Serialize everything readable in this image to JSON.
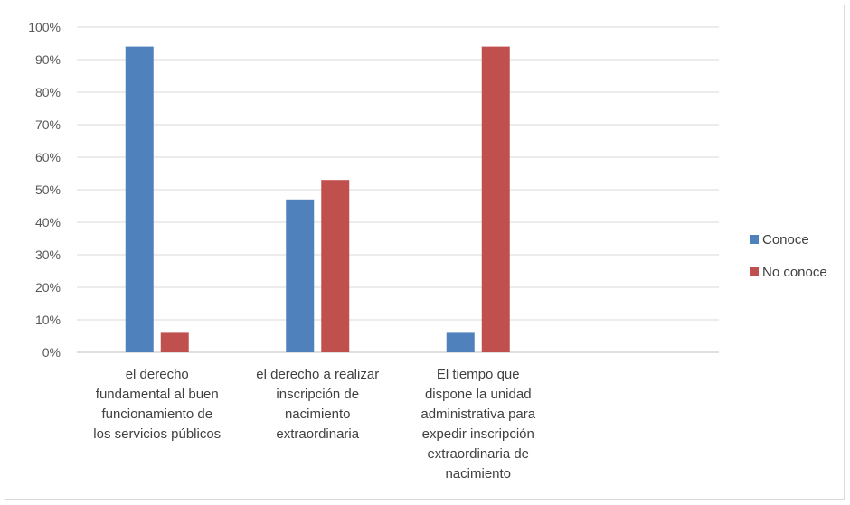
{
  "chart_data": {
    "type": "bar",
    "ylim": [
      0,
      100
    ],
    "y_ticks": [
      "0%",
      "10%",
      "20%",
      "30%",
      "40%",
      "50%",
      "60%",
      "70%",
      "80%",
      "90%",
      "100%"
    ],
    "grid": true,
    "legend_position": "right",
    "categories": [
      [
        "el derecho",
        "fundamental al buen",
        "funcionamiento de",
        "los servicios públicos"
      ],
      [
        "el derecho a realizar",
        "inscripción de",
        "nacimiento",
        "extraordinaria"
      ],
      [
        "El tiempo que",
        "dispone la unidad",
        "administrativa para",
        "expedir inscripción",
        "extraordinaria de",
        "nacimiento"
      ],
      []
    ],
    "series": [
      {
        "name": "Conoce",
        "color": "#4f81bd",
        "values": [
          94,
          47,
          6,
          null
        ]
      },
      {
        "name": "No conoce",
        "color": "#c0504d",
        "values": [
          6,
          53,
          94,
          null
        ]
      }
    ]
  }
}
